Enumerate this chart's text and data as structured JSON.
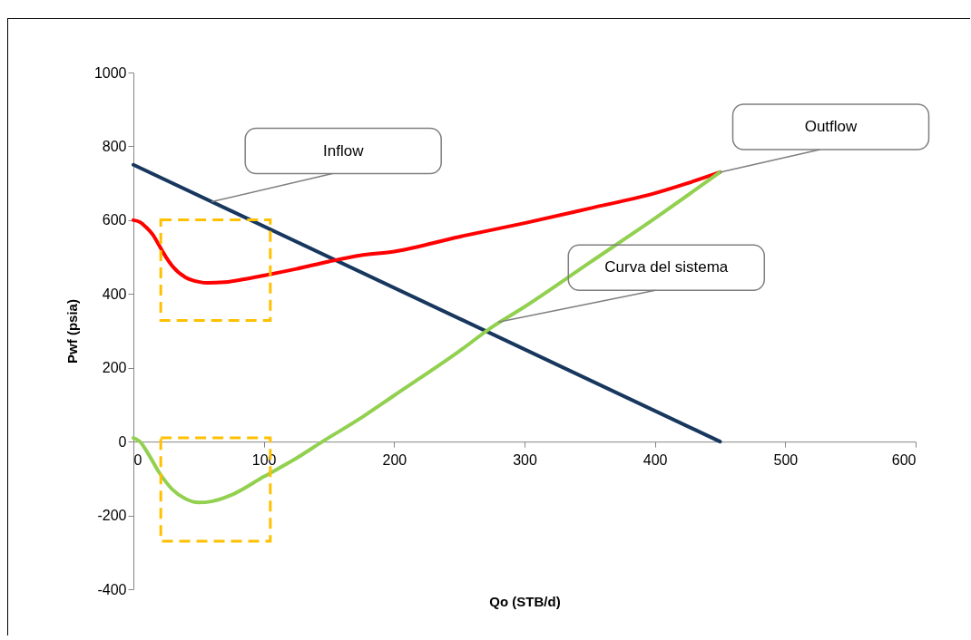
{
  "chart_data": {
    "type": "line",
    "xlabel": "Qo (STB/d)",
    "ylabel": "Pwf (psia)",
    "xlim": [
      0,
      600
    ],
    "xticks": [
      0,
      100,
      200,
      300,
      400,
      500,
      600
    ],
    "ylim": [
      -400,
      1000
    ],
    "yticks": [
      -400,
      -200,
      0,
      200,
      400,
      600,
      800,
      {
        "value": 1000,
        "label": "1000"
      }
    ],
    "grid": false,
    "legend": false,
    "marker": "none",
    "line_style": "solid",
    "series": [
      {
        "color": "#17375e",
        "x": [
          0,
          450
        ],
        "values": [
          750,
          0
        ]
      },
      {
        "color": "#ff0000",
        "x": [
          0,
          5,
          10,
          15,
          20,
          25,
          30,
          40,
          50,
          57,
          70,
          85,
          100,
          125,
          150,
          175,
          200,
          250,
          300,
          350,
          400,
          425,
          450
        ],
        "values": [
          600,
          595,
          580,
          560,
          530,
          500,
          475,
          445,
          433,
          430,
          432,
          440,
          450,
          468,
          488,
          505,
          515,
          555,
          592,
          632,
          673,
          700,
          730
        ]
      },
      {
        "color": "#92d050",
        "x": [
          0,
          5,
          10,
          20,
          30,
          40,
          50,
          60,
          75,
          100,
          125,
          145,
          175,
          200,
          250,
          275,
          300,
          350,
          400,
          450
        ],
        "values": [
          10,
          0,
          -25,
          -85,
          -130,
          -155,
          -165,
          -162,
          -145,
          -95,
          -45,
          0,
          65,
          125,
          245,
          310,
          365,
          485,
          605,
          730
        ]
      }
    ],
    "annotations": [
      {
        "text": "Inflow",
        "x": 60,
        "y": 650
      },
      {
        "text": "Outflow",
        "x": 450,
        "y": 730
      },
      {
        "text": "Curva del sistema",
        "x": 280,
        "y": 324
      }
    ]
  }
}
